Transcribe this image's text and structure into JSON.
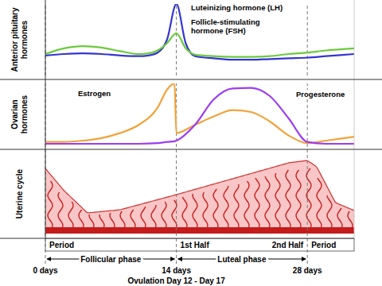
{
  "x_axis": {
    "xlim": [
      0,
      33
    ],
    "xticks": [
      {
        "value": 0,
        "label": "0 days"
      },
      {
        "value": 14,
        "label": "14 days"
      },
      {
        "value": 28,
        "label": "28 days"
      }
    ],
    "grid": true
  },
  "chart_data": [
    {
      "type": "line",
      "ylabel": "Anterior pituitary hormones",
      "ylim": [
        0,
        100
      ],
      "x": [
        0,
        2,
        4,
        6,
        8,
        10,
        11,
        12,
        13,
        14,
        15,
        16,
        18,
        20,
        22,
        24,
        26,
        28,
        30,
        33
      ],
      "series": [
        {
          "name": "Luteinizing hormone (LH)",
          "color": "#3535d0",
          "values": [
            28,
            30,
            31,
            30,
            28,
            27,
            28,
            32,
            50,
            100,
            45,
            27,
            24,
            22,
            22,
            23,
            24,
            25,
            27,
            30
          ]
        },
        {
          "name": "Follicle-stimulating hormone (FSH)",
          "color": "#6cc93c",
          "values": [
            30,
            38,
            41,
            39,
            34,
            30,
            31,
            35,
            45,
            59,
            38,
            29,
            27,
            26,
            26,
            27,
            30,
            32,
            35,
            38
          ]
        }
      ]
    },
    {
      "type": "line",
      "ylabel": "Ovarian hormones",
      "ylim": [
        0,
        100
      ],
      "x": [
        0,
        2,
        4,
        6,
        8,
        10,
        12,
        13,
        13.8,
        14,
        16,
        18,
        20,
        22,
        24,
        26,
        28,
        30,
        33
      ],
      "series": [
        {
          "name": "Estrogen",
          "color": "#f2a33a",
          "values": [
            8,
            8,
            10,
            14,
            22,
            35,
            62,
            90,
            100,
            22,
            35,
            48,
            58,
            55,
            40,
            18,
            6,
            10,
            16
          ]
        },
        {
          "name": "Progesterone",
          "color": "#9d3cf0",
          "values": [
            5,
            5,
            5,
            5,
            5,
            5,
            6,
            8,
            9,
            10,
            35,
            75,
            92,
            93,
            80,
            45,
            8,
            5,
            5
          ]
        }
      ]
    }
  ],
  "uterine_cycle": {
    "label": "Uterine cycle",
    "stages": [
      {
        "label": "Period",
        "start": 0,
        "end": 5
      },
      {
        "label": "1st Half",
        "start": 14,
        "end": 21
      },
      {
        "label": "2nd Half",
        "start": 21,
        "end": 28
      },
      {
        "label": "Period",
        "start": 28,
        "end": 33
      }
    ]
  },
  "phases": [
    {
      "label": "Follicular phase",
      "start": 0,
      "end": 14
    },
    {
      "label": "Luteal phase",
      "start": 14,
      "end": 28
    }
  ],
  "note": "Ovulation Day 12 - Day 17"
}
